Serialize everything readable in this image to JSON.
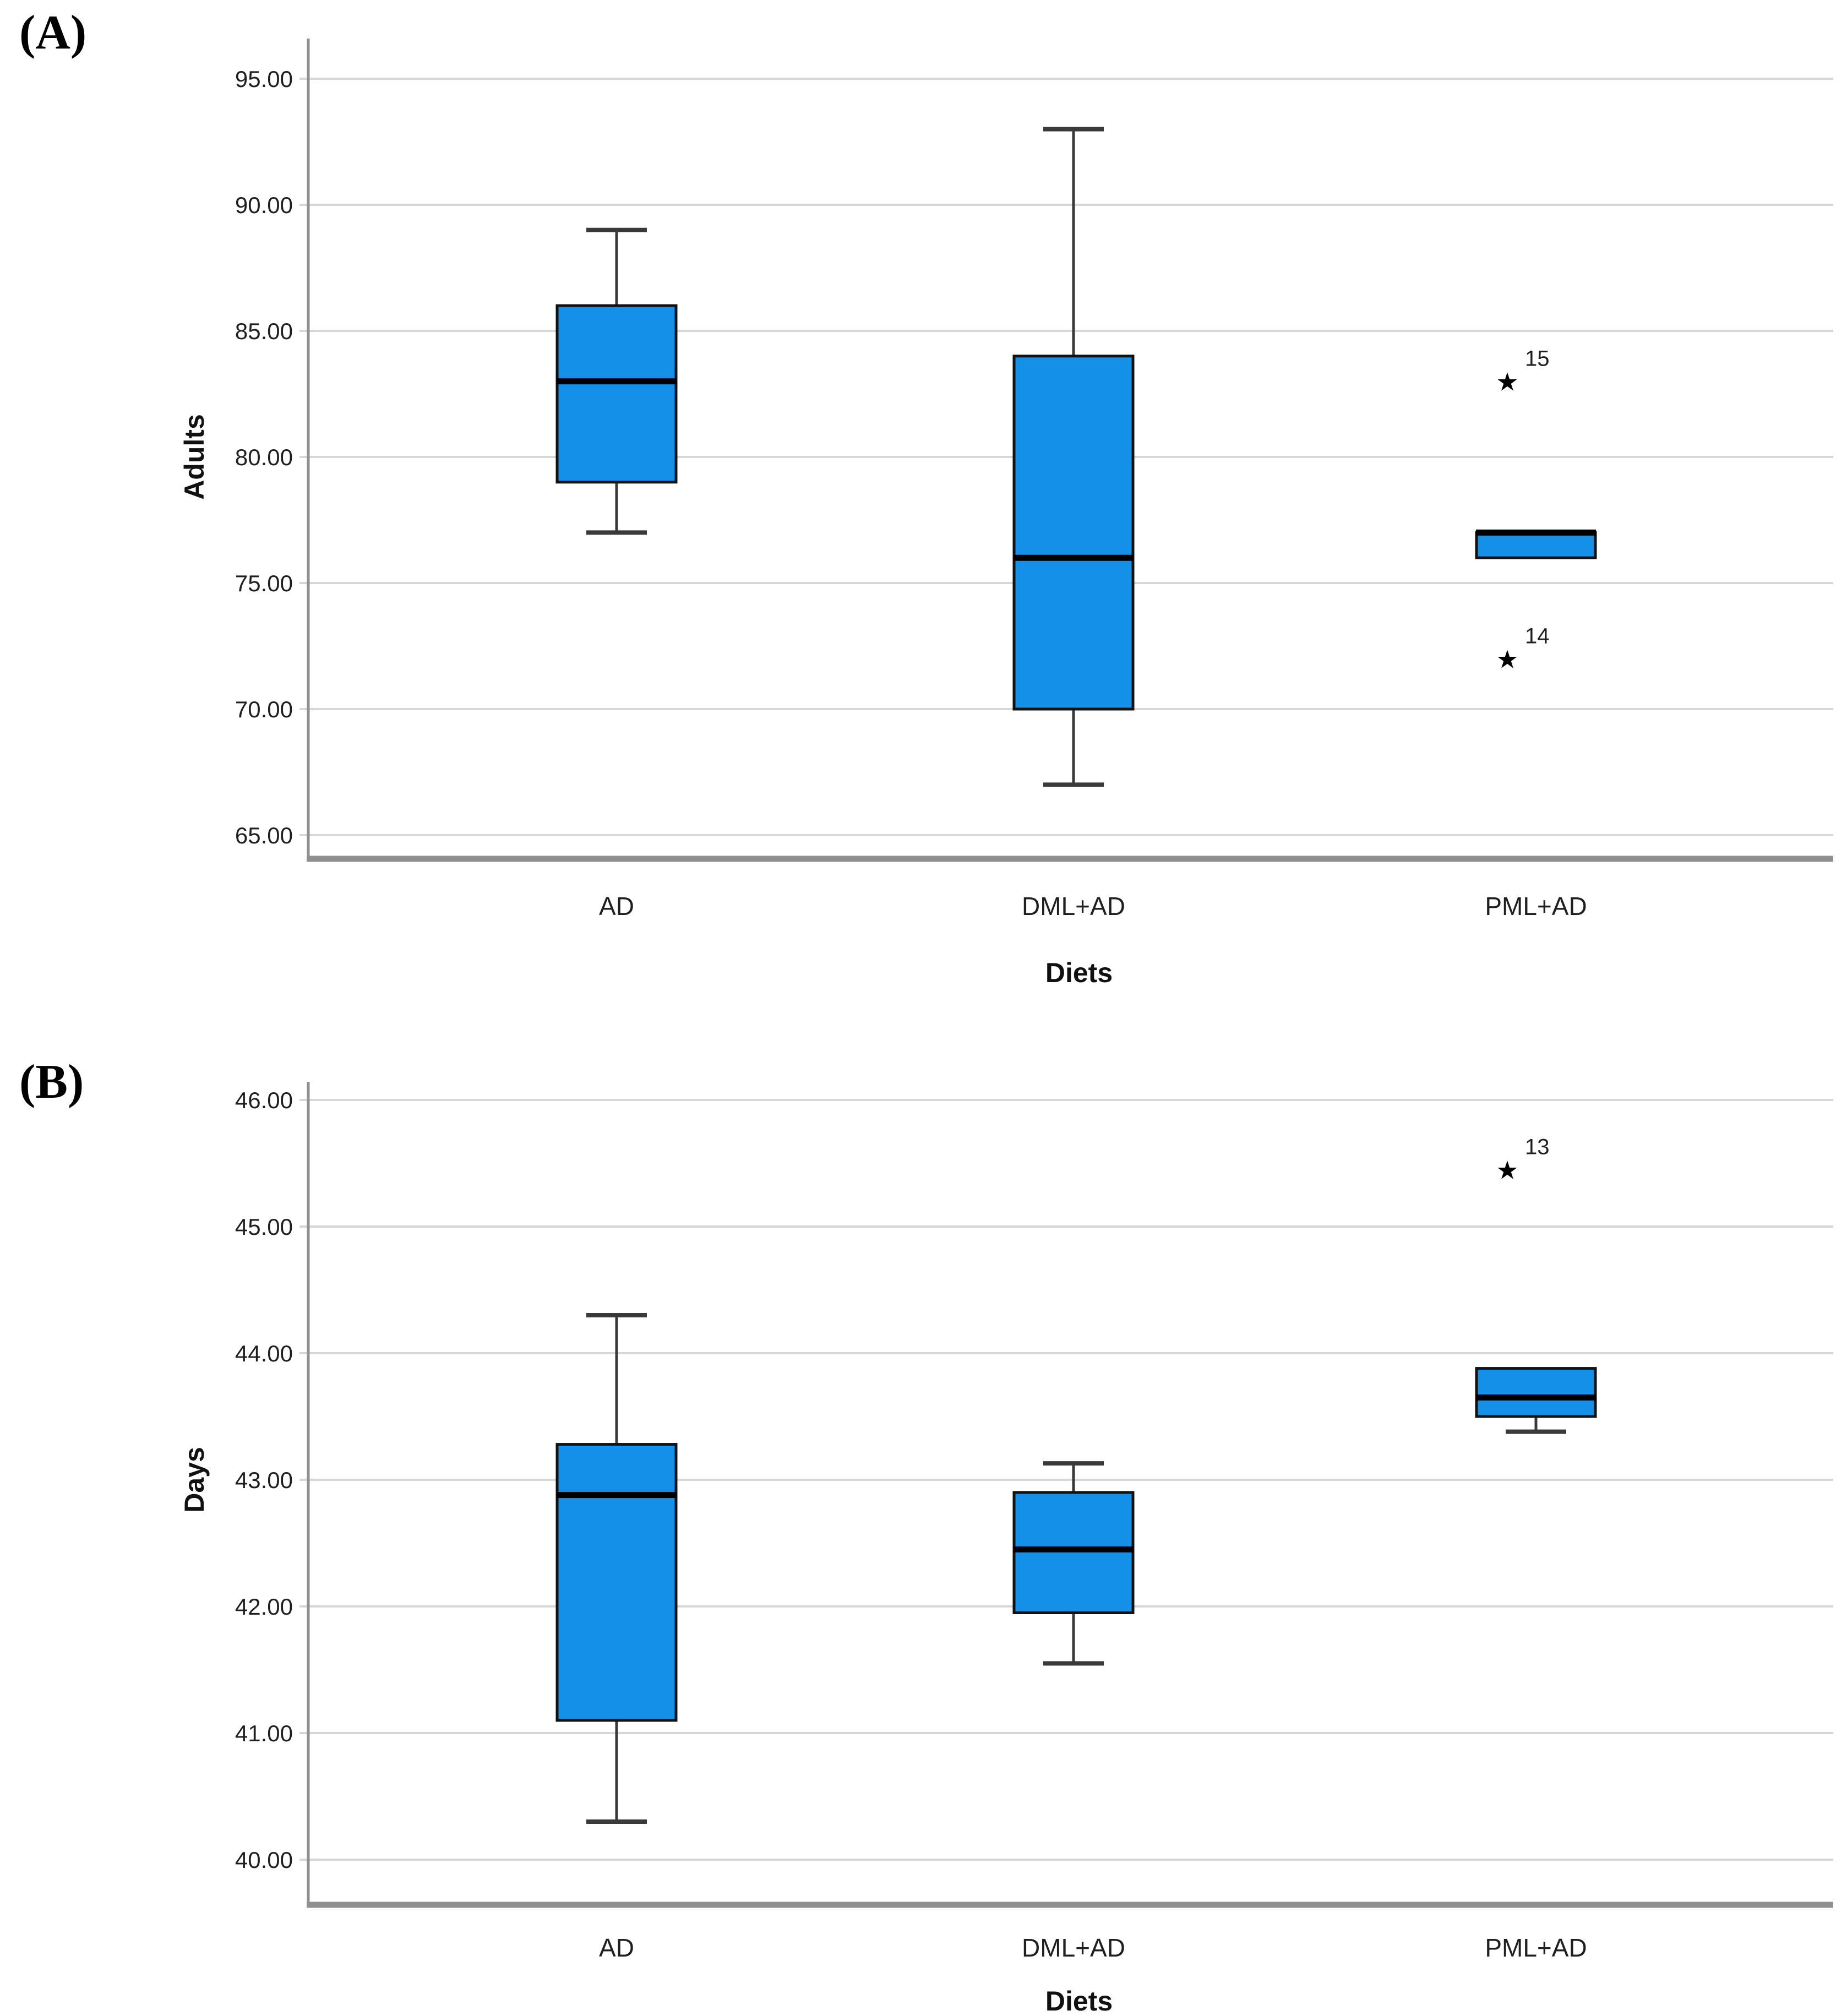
{
  "figure": {
    "background": "#ffffff"
  },
  "colors": {
    "box_fill": "#1490E8",
    "box_stroke": "#121212",
    "median": "#000000",
    "whisker": "#3a3a3a",
    "grid": "#d7d7d7",
    "axis": "#8f8f8f",
    "tick_text": "#1f1f1f",
    "title_text": "#111111",
    "outlier": "#000000"
  },
  "chart_data": [
    {
      "type": "box",
      "panel_label": "(A)",
      "ylabel": "Adults",
      "xlabel": "Diets",
      "categories": [
        "AD",
        "DML+AD",
        "PML+AD"
      ],
      "ylim": [
        65,
        95
      ],
      "yticks": [
        95,
        90,
        85,
        80,
        75,
        70,
        65
      ],
      "grid": true,
      "boxes": [
        {
          "category": "AD",
          "whisker_low": 77,
          "q1": 79,
          "median": 83,
          "q3": 86,
          "whisker_high": 89,
          "outliers": []
        },
        {
          "category": "DML+AD",
          "whisker_low": 67,
          "q1": 70,
          "median": 76,
          "q3": 84,
          "whisker_high": 93,
          "outliers": []
        },
        {
          "category": "PML+AD",
          "whisker_low": 76,
          "q1": 76,
          "median": 77,
          "q3": 77,
          "whisker_high": 77,
          "outliers": [
            {
              "value": 83,
              "label": "15"
            },
            {
              "value": 72,
              "label": "14"
            }
          ]
        }
      ]
    },
    {
      "type": "box",
      "panel_label": "(B)",
      "ylabel": "Days",
      "xlabel": "Diets",
      "categories": [
        "AD",
        "DML+AD",
        "PML+AD"
      ],
      "ylim": [
        40,
        46
      ],
      "yticks": [
        46,
        45,
        44,
        43,
        42,
        41,
        40
      ],
      "grid": true,
      "boxes": [
        {
          "category": "AD",
          "whisker_low": 40.3,
          "q1": 41.1,
          "median": 42.88,
          "q3": 43.28,
          "whisker_high": 44.3,
          "outliers": []
        },
        {
          "category": "DML+AD",
          "whisker_low": 41.55,
          "q1": 41.95,
          "median": 42.45,
          "q3": 42.9,
          "whisker_high": 43.13,
          "outliers": []
        },
        {
          "category": "PML+AD",
          "whisker_low": 43.38,
          "q1": 43.5,
          "median": 43.65,
          "q3": 43.88,
          "whisker_high": 43.88,
          "outliers": [
            {
              "value": 45.45,
              "label": "13"
            }
          ]
        }
      ]
    }
  ]
}
